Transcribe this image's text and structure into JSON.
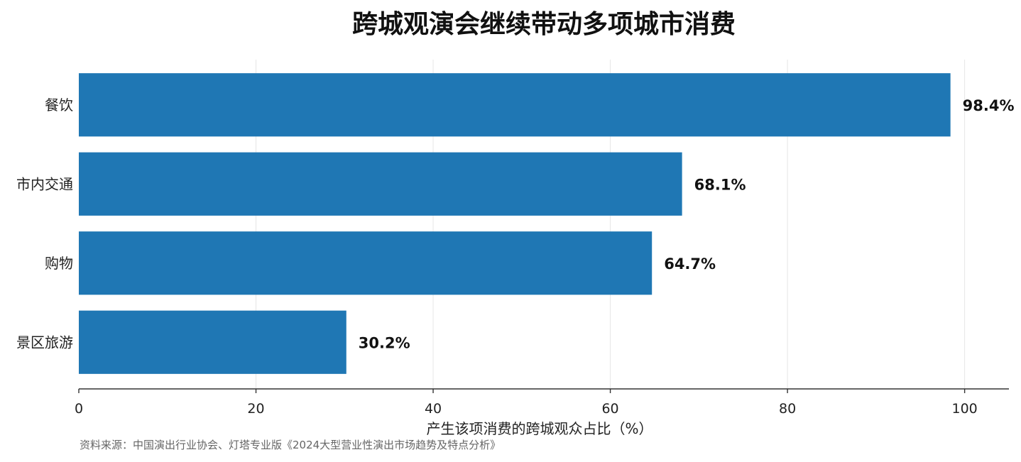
{
  "chart_data": {
    "type": "bar",
    "orientation": "horizontal",
    "title": "跨城观演会继续带动多项城市消费",
    "xlabel": "产生该项消费的跨城观众占比（%）",
    "ylabel": "",
    "categories": [
      "餐饮",
      "市内交通",
      "购物",
      "景区旅游"
    ],
    "values": [
      98.4,
      68.1,
      64.7,
      30.2
    ],
    "value_labels": [
      "98.4%",
      "68.1%",
      "64.7%",
      "30.2%"
    ],
    "xlim": [
      0,
      105
    ],
    "xticks": [
      0,
      20,
      40,
      60,
      80,
      100
    ],
    "xtick_labels": [
      "0",
      "20",
      "40",
      "60",
      "80",
      "100"
    ],
    "grid": true,
    "legend": "none",
    "bar_color": "#1f77b4",
    "source": "资料来源：中国演出行业协会、灯塔专业版《2024大型营业性演出市场趋势及特点分析》"
  }
}
